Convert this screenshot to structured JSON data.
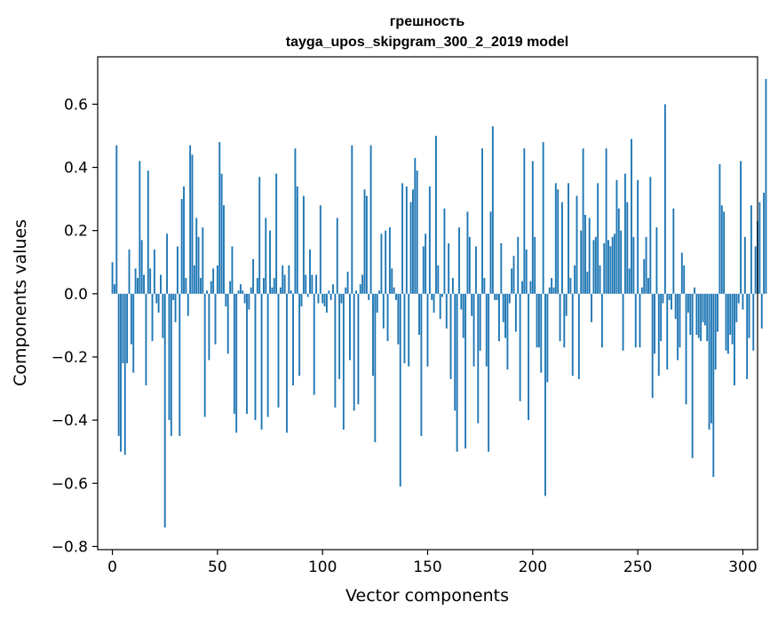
{
  "chart_data": {
    "type": "bar",
    "title": "грешность",
    "subtitle": "tayga_upos_skipgram_300_2_2019 model",
    "xlabel": "Vector components",
    "ylabel": "Components values",
    "xlim": [
      -7,
      307
    ],
    "ylim": [
      -0.81,
      0.75
    ],
    "xticks": [
      0,
      50,
      100,
      150,
      200,
      250,
      300
    ],
    "yticks": [
      -0.8,
      -0.6,
      -0.4,
      -0.2,
      0.0,
      0.2,
      0.4,
      0.6
    ],
    "ytick_labels": [
      "−0.8",
      "−0.6",
      "−0.4",
      "−0.2",
      "0.0",
      "0.2",
      "0.4",
      "0.6"
    ],
    "bar_color": "#1f77b4",
    "values": [
      0.1,
      0.03,
      0.47,
      -0.45,
      -0.5,
      -0.22,
      -0.51,
      -0.22,
      0.14,
      -0.16,
      -0.25,
      0.08,
      0.05,
      0.42,
      0.17,
      0.06,
      -0.29,
      0.39,
      0.08,
      -0.15,
      0.14,
      -0.03,
      -0.06,
      0.06,
      -0.14,
      -0.74,
      0.19,
      -0.4,
      -0.45,
      -0.02,
      -0.09,
      0.15,
      -0.45,
      0.3,
      0.34,
      0.05,
      -0.07,
      0.47,
      0.44,
      0.09,
      0.24,
      0.18,
      0.05,
      0.21,
      -0.39,
      0.01,
      -0.21,
      0.04,
      0.08,
      -0.16,
      0.09,
      0.48,
      0.38,
      0.28,
      -0.04,
      -0.19,
      0.04,
      0.15,
      -0.38,
      -0.44,
      0.01,
      0.03,
      0.01,
      -0.03,
      -0.38,
      -0.05,
      0.02,
      0.11,
      -0.4,
      0.05,
      0.37,
      -0.43,
      0.05,
      0.24,
      -0.39,
      0.2,
      0.02,
      0.05,
      0.38,
      -0.36,
      0.02,
      0.09,
      0.06,
      -0.44,
      0.09,
      0.01,
      -0.29,
      0.46,
      0.34,
      -0.26,
      -0.04,
      0.31,
      0.06,
      -0.01,
      0.14,
      0.06,
      -0.32,
      0.06,
      -0.03,
      0.28,
      -0.03,
      -0.04,
      -0.06,
      0.01,
      -0.02,
      0.03,
      -0.36,
      0.24,
      -0.27,
      -0.03,
      -0.43,
      0.02,
      0.07,
      -0.21,
      0.47,
      -0.37,
      0.01,
      -0.35,
      0.03,
      0.06,
      0.33,
      0.31,
      -0.02,
      0.47,
      -0.26,
      -0.47,
      -0.06,
      0.01,
      0.19,
      -0.11,
      0.2,
      -0.15,
      0.21,
      0.08,
      0.02,
      -0.02,
      -0.16,
      -0.61,
      0.35,
      -0.22,
      0.34,
      -0.23,
      0.29,
      0.33,
      0.43,
      0.39,
      -0.13,
      -0.45,
      0.15,
      0.19,
      -0.23,
      0.34,
      -0.02,
      -0.06,
      0.5,
      0.09,
      -0.08,
      -0.01,
      0.27,
      -0.11,
      0.16,
      -0.27,
      0.05,
      -0.37,
      -0.5,
      0.21,
      -0.05,
      -0.14,
      -0.49,
      0.26,
      0.18,
      -0.07,
      -0.23,
      0.15,
      -0.41,
      -0.18,
      0.46,
      0.05,
      -0.23,
      -0.5,
      0.26,
      0.53,
      -0.02,
      -0.02,
      -0.15,
      0.16,
      -0.09,
      -0.14,
      -0.24,
      -0.03,
      0.08,
      0.12,
      -0.12,
      0.18,
      -0.34,
      0.04,
      0.46,
      0.14,
      -0.4,
      0.04,
      0.42,
      0.18,
      -0.17,
      -0.17,
      -0.25,
      0.48,
      -0.64,
      -0.28,
      0.02,
      0.05,
      0.02,
      0.35,
      0.33,
      -0.15,
      0.29,
      -0.17,
      -0.07,
      0.35,
      0.05,
      -0.26,
      0.09,
      0.31,
      -0.27,
      0.2,
      0.46,
      0.25,
      0.07,
      0.24,
      -0.09,
      0.17,
      0.18,
      0.35,
      0.09,
      -0.17,
      0.16,
      0.46,
      0.17,
      0.15,
      0.18,
      0.19,
      0.36,
      0.27,
      0.2,
      -0.18,
      0.38,
      0.29,
      0.08,
      0.49,
      0.18,
      -0.17,
      0.36,
      -0.17,
      0.02,
      0.11,
      0.18,
      0.05,
      0.37,
      -0.33,
      -0.19,
      0.21,
      -0.26,
      -0.15,
      -0.03,
      0.6,
      -0.24,
      -0.02,
      -0.05,
      0.27,
      -0.08,
      -0.21,
      -0.17,
      0.13,
      0.09,
      -0.35,
      -0.06,
      -0.13,
      -0.52,
      0.02,
      -0.13,
      -0.14,
      -0.15,
      -0.09,
      -0.1,
      -0.15,
      -0.43,
      -0.41,
      -0.58,
      -0.24,
      -0.12,
      0.41,
      0.28,
      0.26,
      -0.18,
      -0.19,
      -0.13,
      -0.16,
      -0.29,
      -0.09,
      -0.03,
      0.42,
      -0.05,
      0.18,
      -0.27,
      -0.14,
      0.28,
      -0.18,
      0.15,
      0.23,
      0.29,
      -0.11,
      0.32,
      0.68
    ]
  }
}
